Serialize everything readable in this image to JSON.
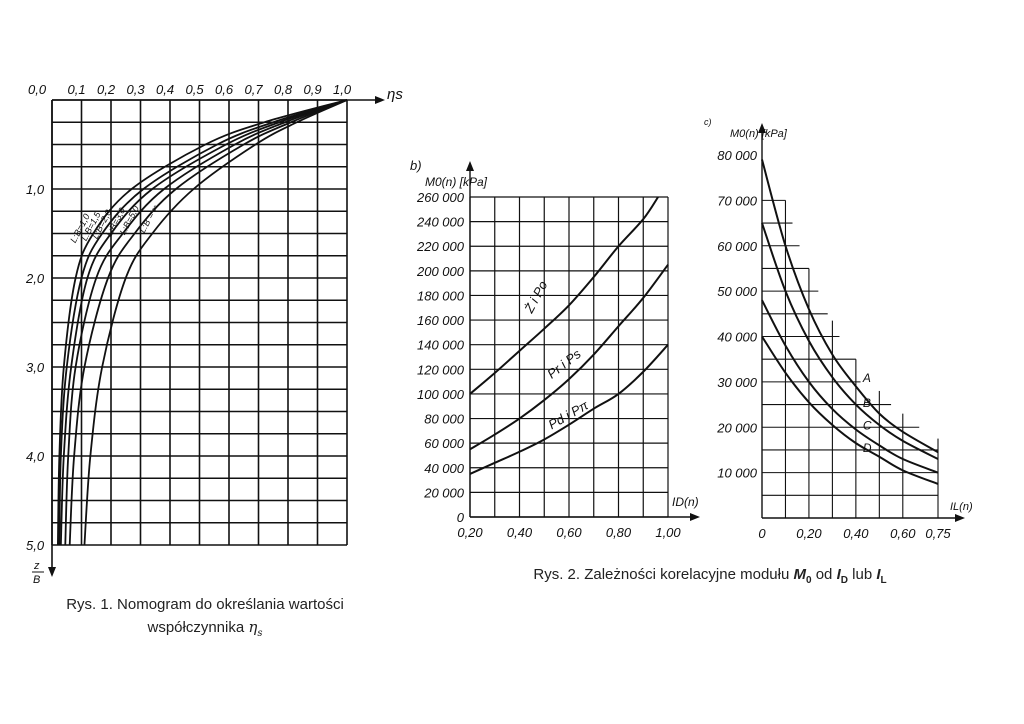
{
  "chart_data": [
    {
      "type": "line",
      "title": "",
      "xlabel": "ηs",
      "ylabel_num": "z",
      "ylabel_den": "B",
      "xlim": [
        0,
        1.0
      ],
      "ylim": [
        0,
        5.0
      ],
      "y_inverted": true,
      "x_ticks": [
        "0,0",
        "0,1",
        "0,2",
        "0,3",
        "0,4",
        "0,5",
        "0,6",
        "0,7",
        "0,8",
        "0,9",
        "1,0"
      ],
      "y_ticks": [
        {
          "v": 1,
          "label": "1,0"
        },
        {
          "v": 2,
          "label": "2,0"
        },
        {
          "v": 3,
          "label": "3,0"
        },
        {
          "v": 4,
          "label": "4,0"
        },
        {
          "v": 5,
          "label": "5,0"
        }
      ],
      "grid": true,
      "z": [
        0,
        0.25,
        0.5,
        1.0,
        1.5,
        2.0,
        3.0,
        4.0,
        5.0
      ],
      "series": [
        {
          "name": "L:B=1,0",
          "eta": [
            1.0,
            0.72,
            0.52,
            0.27,
            0.14,
            0.08,
            0.04,
            0.025,
            0.02
          ]
        },
        {
          "name": "L:B=1,5",
          "eta": [
            1.0,
            0.75,
            0.56,
            0.31,
            0.17,
            0.1,
            0.05,
            0.03,
            0.025
          ]
        },
        {
          "name": "L:B=2,0",
          "eta": [
            1.0,
            0.77,
            0.59,
            0.34,
            0.2,
            0.12,
            0.065,
            0.04,
            0.03
          ]
        },
        {
          "name": "L:B=3,0",
          "eta": [
            1.0,
            0.79,
            0.62,
            0.38,
            0.24,
            0.15,
            0.08,
            0.055,
            0.045
          ]
        },
        {
          "name": "L:B=5,0",
          "eta": [
            1.0,
            0.81,
            0.65,
            0.42,
            0.28,
            0.19,
            0.11,
            0.075,
            0.06
          ]
        },
        {
          "name": "L:B = ∞",
          "eta": [
            1.0,
            0.83,
            0.69,
            0.48,
            0.34,
            0.25,
            0.17,
            0.13,
            0.11
          ]
        }
      ]
    },
    {
      "type": "line",
      "panel": "b)",
      "ylabel": "M0(n) [kPa]",
      "xlabel": "ID(n)",
      "xlim": [
        0.2,
        1.0
      ],
      "ylim": [
        0,
        260000
      ],
      "x_ticks": [
        "0,20",
        "0,40",
        "0,60",
        "0,80",
        "1,00"
      ],
      "y_ticks": [
        "0",
        "20 000",
        "40 000",
        "60 000",
        "80 000",
        "100 000",
        "120 000",
        "140 000",
        "160 000",
        "180 000",
        "200 000",
        "220 000",
        "240 000",
        "260 000"
      ],
      "grid": true,
      "series": [
        {
          "name": "Ż i Po",
          "x": [
            0.2,
            0.3,
            0.4,
            0.5,
            0.6,
            0.7,
            0.8,
            0.9,
            0.96
          ],
          "y": [
            100000,
            117000,
            135000,
            153000,
            172000,
            195000,
            220000,
            242000,
            260000
          ]
        },
        {
          "name": "Pr i Ps",
          "x": [
            0.2,
            0.3,
            0.4,
            0.5,
            0.6,
            0.7,
            0.8,
            0.9,
            1.0
          ],
          "y": [
            55000,
            67000,
            80000,
            95000,
            112000,
            132000,
            155000,
            178000,
            205000
          ]
        },
        {
          "name": "Pd i Pπ",
          "x": [
            0.2,
            0.3,
            0.4,
            0.5,
            0.6,
            0.7,
            0.8,
            0.9,
            1.0
          ],
          "y": [
            35000,
            44000,
            53000,
            63000,
            75000,
            88000,
            100000,
            118000,
            140000
          ]
        }
      ]
    },
    {
      "type": "line",
      "panel": "c)",
      "ylabel": "M0(n) [kPa]",
      "xlabel": "IL(n)",
      "xlim": [
        0,
        0.75
      ],
      "ylim": [
        0,
        80000
      ],
      "x_ticks": [
        {
          "v": 0,
          "label": "0"
        },
        {
          "v": 0.2,
          "label": "0,20"
        },
        {
          "v": 0.4,
          "label": "0,40"
        },
        {
          "v": 0.6,
          "label": "0,60"
        },
        {
          "v": 0.75,
          "label": "0,75"
        }
      ],
      "y_ticks": [
        "10 000",
        "20 000",
        "30 000",
        "40 000",
        "50 000",
        "60 000",
        "70 000",
        "80 000"
      ],
      "grid": true,
      "series": [
        {
          "name": "A",
          "x": [
            0,
            0.1,
            0.2,
            0.3,
            0.4,
            0.5,
            0.6,
            0.75
          ],
          "y": [
            79000,
            60000,
            46000,
            36000,
            29000,
            23000,
            19000,
            14500
          ]
        },
        {
          "name": "B",
          "x": [
            0,
            0.1,
            0.2,
            0.3,
            0.4,
            0.5,
            0.6,
            0.75
          ],
          "y": [
            65000,
            50000,
            39000,
            31000,
            25000,
            20500,
            17000,
            13000
          ]
        },
        {
          "name": "C",
          "x": [
            0,
            0.1,
            0.2,
            0.3,
            0.4,
            0.5,
            0.6,
            0.75
          ],
          "y": [
            48000,
            38000,
            30000,
            24000,
            19500,
            16000,
            13000,
            10000
          ]
        },
        {
          "name": "D",
          "x": [
            0,
            0.1,
            0.2,
            0.3,
            0.4,
            0.5,
            0.6,
            0.75
          ],
          "y": [
            40000,
            32000,
            25500,
            20500,
            16500,
            13500,
            10500,
            7500
          ]
        }
      ]
    }
  ],
  "captions": {
    "fig1_line1": "Rys. 1. Nomogram do określania wartości",
    "fig1_line2": "współczynnika",
    "fig1_symbol": "η",
    "fig1_symbol_sub": "s",
    "fig2_prefix": "Rys. 2. Zależności korelacyjne modułu",
    "fig2_m": "M",
    "fig2_m_sub": "0",
    "fig2_od": "od",
    "fig2_id": "I",
    "fig2_id_sub": "D",
    "fig2_lub": "lub",
    "fig2_il": "I",
    "fig2_il_sub": "L"
  }
}
